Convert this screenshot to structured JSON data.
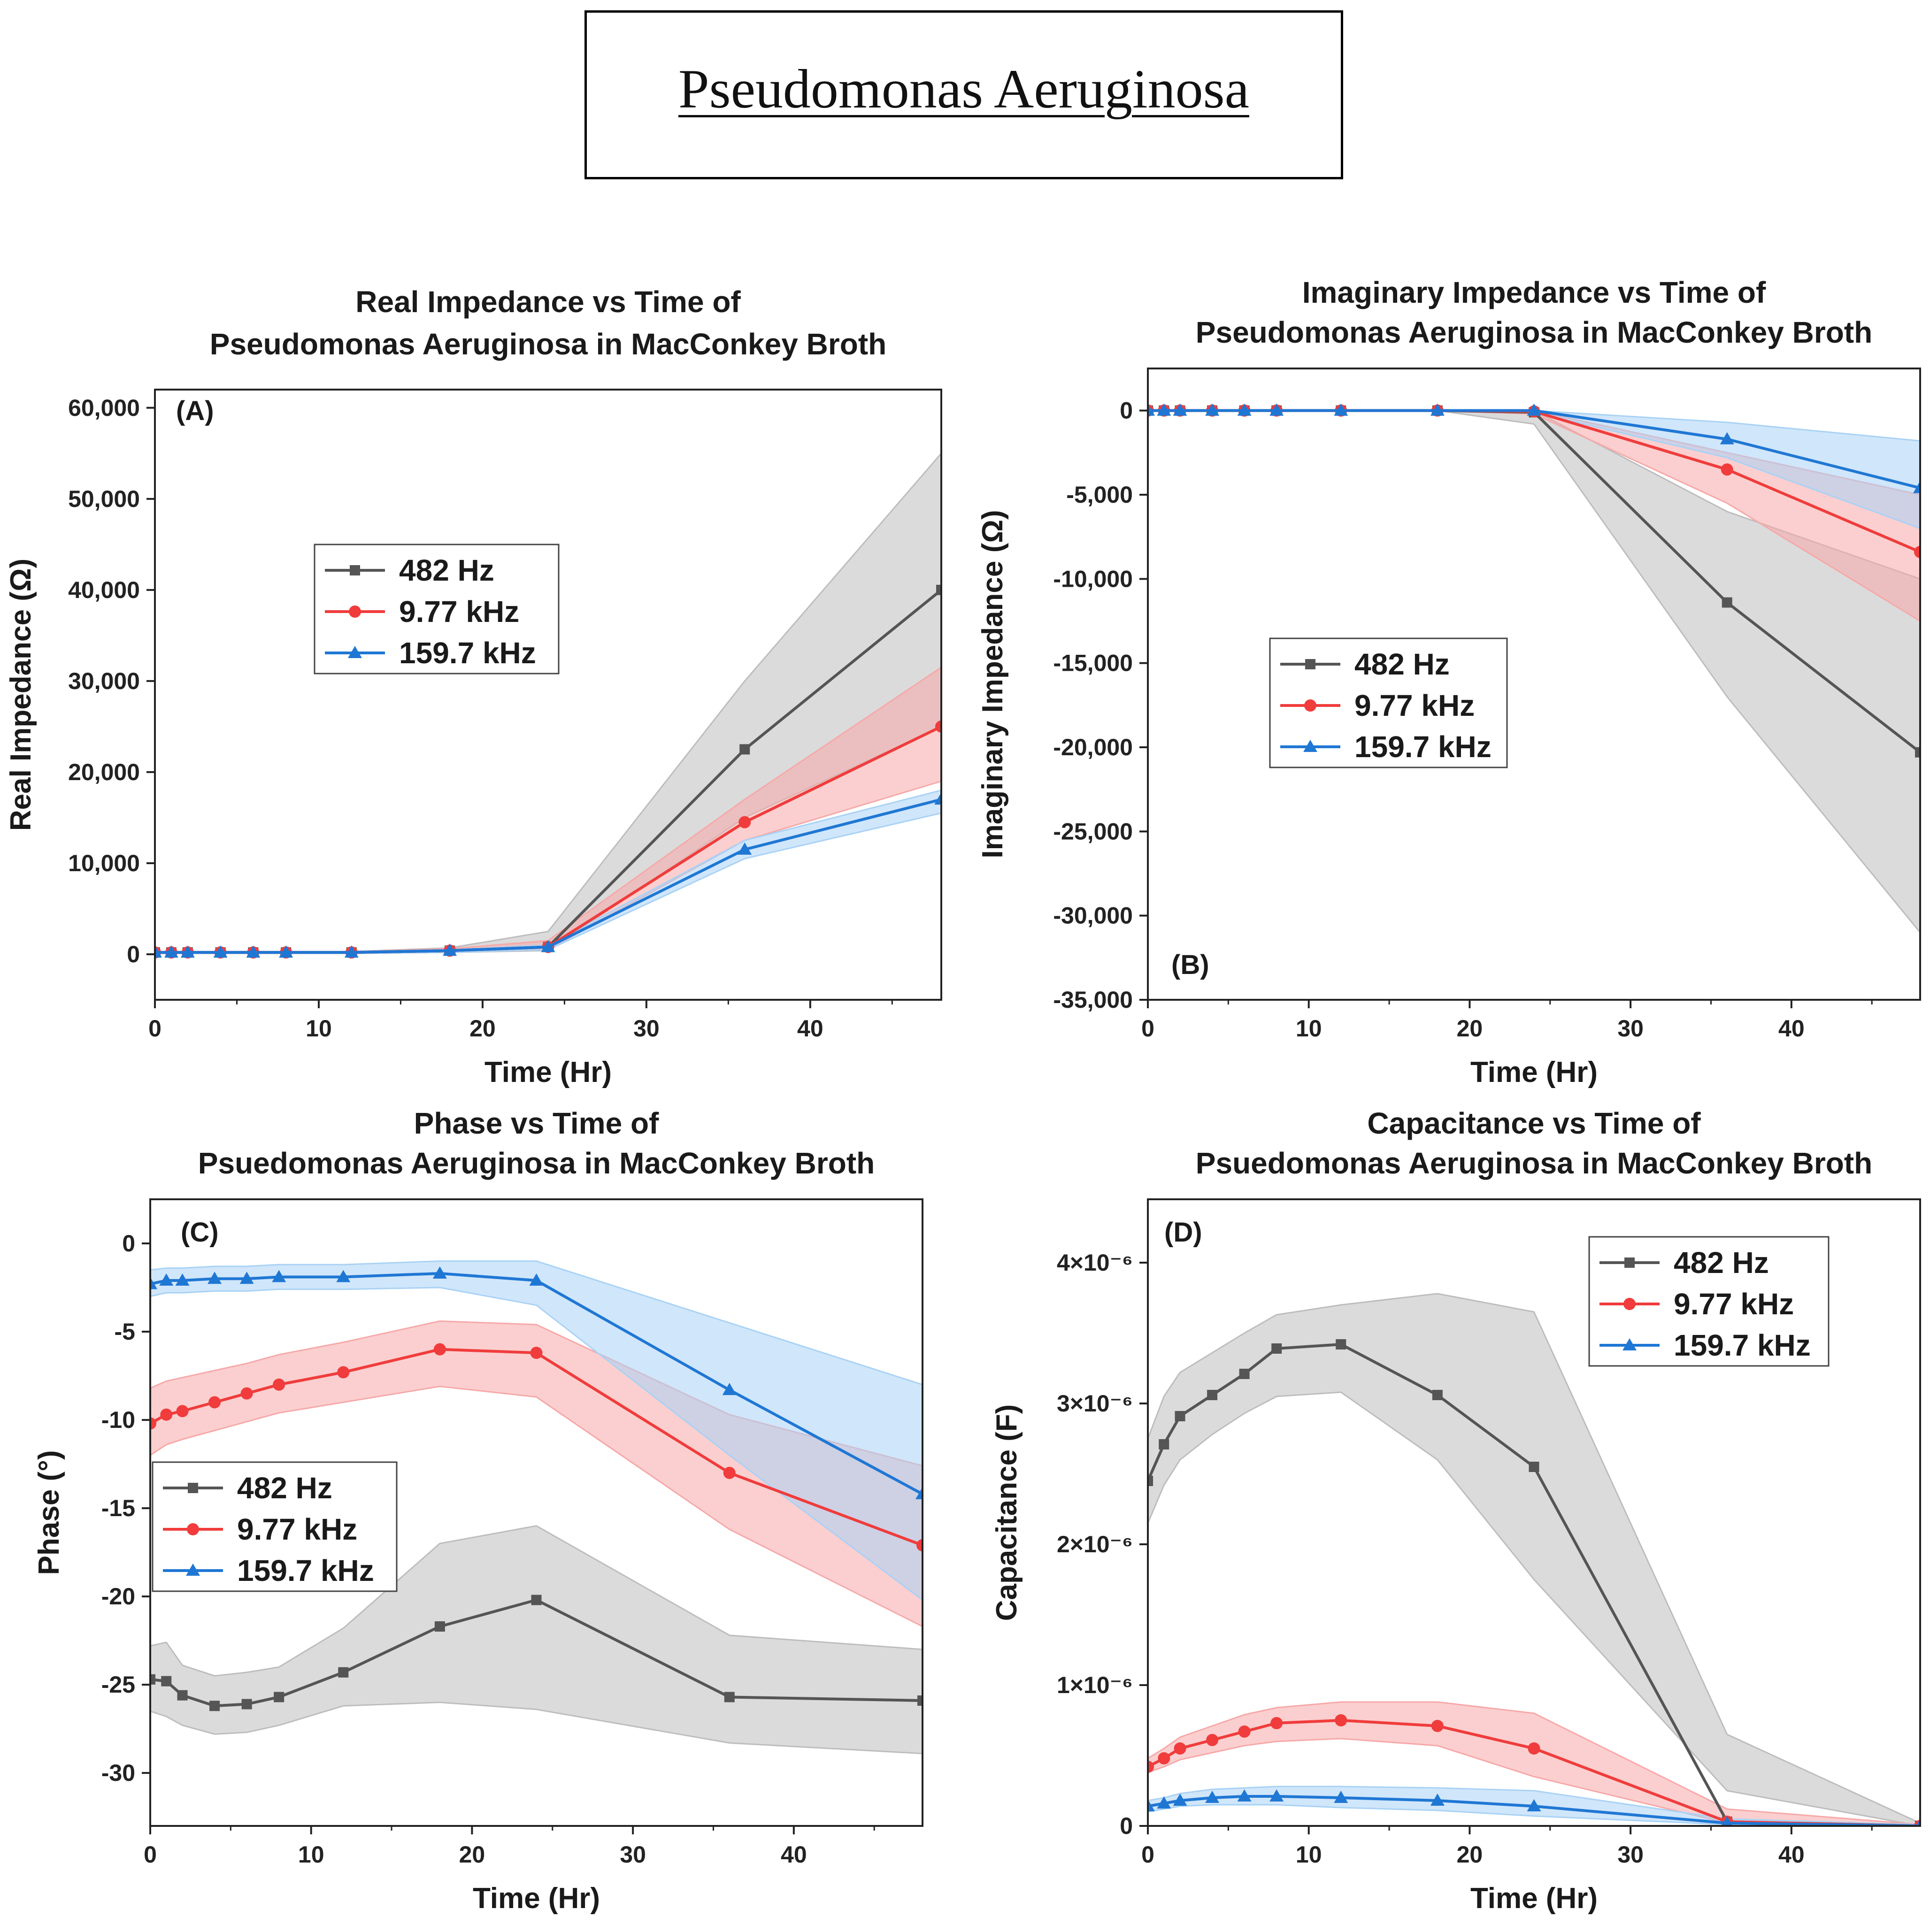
{
  "header": {
    "title": "Pseudomonas Aeruginosa"
  },
  "legend_labels": [
    "482 Hz",
    "9.77 kHz",
    "159.7 kHz"
  ],
  "colors": {
    "s482": "#555555",
    "s977": "#f03c3c",
    "s1597": "#1f77d4",
    "band482": "#bdbdbd",
    "band977": "#f7a8a8",
    "band1597": "#a9d2f5"
  },
  "chart_data": [
    {
      "id": "A",
      "type": "line",
      "panel_label": "(A)",
      "title_lines": [
        "Real Impedance vs Time of",
        "Pseudomonas Aeruginosa in MacConkey Broth"
      ],
      "xlabel": "Time (Hr)",
      "ylabel": "Real Impedance (Ω)",
      "xlim": [
        0,
        48
      ],
      "ylim": [
        -5000,
        62000
      ],
      "xticks": [
        0,
        10,
        20,
        30,
        40
      ],
      "xtick_labels": [
        "0",
        "10",
        "20",
        "30",
        "40"
      ],
      "yticks": [
        0,
        10000,
        20000,
        30000,
        40000,
        50000,
        60000
      ],
      "ytick_labels": [
        "0",
        "10,000",
        "20,000",
        "30,000",
        "40,000",
        "50,000",
        "60,000"
      ],
      "x": [
        0,
        1,
        2,
        4,
        6,
        8,
        12,
        18,
        24,
        36,
        48
      ],
      "series": [
        {
          "name": "482 Hz",
          "marker": "square",
          "values": [
            200,
            200,
            200,
            200,
            200,
            200,
            200,
            400,
            800,
            22500,
            40000
          ],
          "band_lo": [
            100,
            100,
            100,
            100,
            100,
            100,
            100,
            200,
            400,
            15000,
            25000
          ],
          "band_hi": [
            300,
            300,
            300,
            300,
            300,
            300,
            300,
            700,
            2500,
            30000,
            55000
          ]
        },
        {
          "name": "9.77 kHz",
          "marker": "circle",
          "values": [
            200,
            200,
            200,
            200,
            200,
            200,
            200,
            400,
            800,
            14500,
            25000
          ],
          "band_lo": [
            100,
            100,
            100,
            100,
            100,
            100,
            100,
            200,
            500,
            12500,
            19000
          ],
          "band_hi": [
            300,
            300,
            300,
            300,
            300,
            300,
            300,
            600,
            1500,
            17000,
            31500
          ]
        },
        {
          "name": "159.7 kHz",
          "marker": "triangle",
          "values": [
            200,
            200,
            200,
            200,
            200,
            200,
            200,
            400,
            800,
            11500,
            17000
          ],
          "band_lo": [
            100,
            100,
            100,
            100,
            100,
            100,
            100,
            200,
            500,
            10500,
            15500
          ],
          "band_hi": [
            300,
            300,
            300,
            300,
            300,
            300,
            300,
            500,
            1000,
            12500,
            18000
          ]
        }
      ],
      "legend_position": "upper-left"
    },
    {
      "id": "B",
      "type": "line",
      "panel_label": "(B)",
      "title_lines": [
        "Imaginary Impedance vs Time of",
        "Pseudomonas Aeruginosa in MacConkey Broth"
      ],
      "xlabel": "Time (Hr)",
      "ylabel": "Imaginary Impedance (Ω)",
      "xlim": [
        0,
        48
      ],
      "ylim": [
        -35000,
        2500
      ],
      "xticks": [
        0,
        10,
        20,
        30,
        40
      ],
      "xtick_labels": [
        "0",
        "10",
        "20",
        "30",
        "40"
      ],
      "yticks": [
        0,
        -5000,
        -10000,
        -15000,
        -20000,
        -25000,
        -30000,
        -35000
      ],
      "ytick_labels": [
        "0",
        "-5,000",
        "-10,000",
        "-15,000",
        "-20,000",
        "-25,000",
        "-30,000",
        "-35,000"
      ],
      "x": [
        0,
        1,
        2,
        4,
        6,
        8,
        12,
        18,
        24,
        36,
        48
      ],
      "series": [
        {
          "name": "482 Hz",
          "marker": "square",
          "values": [
            0,
            0,
            0,
            0,
            0,
            0,
            0,
            0,
            -100,
            -11400,
            -20300
          ],
          "band_lo": [
            0,
            0,
            0,
            0,
            0,
            0,
            0,
            0,
            -800,
            -17000,
            -31000
          ],
          "band_hi": [
            0,
            0,
            0,
            0,
            0,
            0,
            0,
            0,
            0,
            -6000,
            -10000
          ]
        },
        {
          "name": "9.77 kHz",
          "marker": "circle",
          "values": [
            0,
            0,
            0,
            0,
            0,
            0,
            0,
            0,
            -50,
            -3500,
            -8400
          ],
          "band_lo": [
            0,
            0,
            0,
            0,
            0,
            0,
            0,
            0,
            -200,
            -5500,
            -12500
          ],
          "band_hi": [
            0,
            0,
            0,
            0,
            0,
            0,
            0,
            0,
            0,
            -2500,
            -5000
          ]
        },
        {
          "name": "159.7 kHz",
          "marker": "triangle",
          "values": [
            0,
            0,
            0,
            0,
            0,
            0,
            0,
            0,
            0,
            -1700,
            -4600
          ],
          "band_lo": [
            0,
            0,
            0,
            0,
            0,
            0,
            0,
            0,
            -100,
            -2800,
            -7000
          ],
          "band_hi": [
            0,
            0,
            0,
            0,
            0,
            0,
            0,
            0,
            0,
            -700,
            -1800
          ]
        }
      ],
      "legend_position": "middle-left"
    },
    {
      "id": "C",
      "type": "line",
      "panel_label": "(C)",
      "title_lines": [
        "Phase vs Time of",
        "Psuedomonas Aeruginosa in MacConkey Broth"
      ],
      "xlabel": "Time (Hr)",
      "ylabel": "Phase (°)",
      "xlim": [
        0,
        48
      ],
      "ylim": [
        -33,
        2.5
      ],
      "xticks": [
        0,
        10,
        20,
        30,
        40
      ],
      "xtick_labels": [
        "0",
        "10",
        "20",
        "30",
        "40"
      ],
      "yticks": [
        0,
        -5,
        -10,
        -15,
        -20,
        -25,
        -30
      ],
      "ytick_labels": [
        "0",
        "-5",
        "-10",
        "-15",
        "-20",
        "-25",
        "-30"
      ],
      "x": [
        0,
        1,
        2,
        4,
        6,
        8,
        12,
        18,
        24,
        36,
        48
      ],
      "series": [
        {
          "name": "482 Hz",
          "marker": "square",
          "values": [
            -24.7,
            -24.8,
            -25.6,
            -26.2,
            -26.1,
            -25.7,
            -24.3,
            -21.7,
            -20.2,
            -25.7,
            -25.9
          ],
          "band_lo": [
            -26.5,
            -26.8,
            -27.3,
            -27.8,
            -27.7,
            -27.3,
            -26.2,
            -26.0,
            -26.4,
            -28.3,
            -28.9
          ],
          "band_hi": [
            -22.8,
            -22.6,
            -23.9,
            -24.5,
            -24.3,
            -24.0,
            -21.8,
            -17.0,
            -16.0,
            -22.2,
            -23.0
          ]
        },
        {
          "name": "9.77 kHz",
          "marker": "circle",
          "values": [
            -10.2,
            -9.7,
            -9.5,
            -9.0,
            -8.5,
            -8.0,
            -7.3,
            -6.0,
            -6.2,
            -13.0,
            -17.1
          ],
          "band_lo": [
            -12.0,
            -11.4,
            -11.1,
            -10.6,
            -10.1,
            -9.6,
            -9.0,
            -8.1,
            -8.7,
            -16.2,
            -21.7
          ],
          "band_hi": [
            -8.2,
            -7.8,
            -7.6,
            -7.2,
            -6.8,
            -6.3,
            -5.6,
            -4.4,
            -4.6,
            -9.7,
            -12.6
          ]
        },
        {
          "name": "159.7 kHz",
          "marker": "triangle",
          "values": [
            -2.3,
            -2.1,
            -2.1,
            -2.0,
            -2.0,
            -1.9,
            -1.9,
            -1.7,
            -2.1,
            -8.3,
            -14.2
          ],
          "band_lo": [
            -3.0,
            -2.8,
            -2.8,
            -2.7,
            -2.7,
            -2.6,
            -2.6,
            -2.5,
            -3.5,
            -12.0,
            -20.2
          ],
          "band_hi": [
            -1.5,
            -1.4,
            -1.4,
            -1.3,
            -1.3,
            -1.2,
            -1.2,
            -1.0,
            -1.0,
            -4.5,
            -8.0
          ]
        }
      ],
      "legend_position": "lower-left"
    },
    {
      "id": "D",
      "type": "line",
      "panel_label": "(D)",
      "title_lines": [
        "Capacitance vs Time of",
        "Psuedomonas Aeruginosa in MacConkey Broth"
      ],
      "xlabel": "Time (Hr)",
      "ylabel": "Capacitance (F)",
      "xlim": [
        0,
        48
      ],
      "ylim": [
        0,
        4.45
      ],
      "y_unit_note": "values ×10⁻⁶ F",
      "xticks": [
        0,
        10,
        20,
        30,
        40
      ],
      "xtick_labels": [
        "0",
        "10",
        "20",
        "30",
        "40"
      ],
      "yticks": [
        0,
        1,
        2,
        3,
        4
      ],
      "ytick_labels": [
        "0",
        "1×10⁻⁶",
        "2×10⁻⁶",
        "3×10⁻⁶",
        "4×10⁻⁶"
      ],
      "x": [
        0,
        1,
        2,
        4,
        6,
        8,
        12,
        18,
        24,
        36,
        48
      ],
      "series": [
        {
          "name": "482 Hz",
          "marker": "square",
          "values": [
            2.45,
            2.71,
            2.91,
            3.06,
            3.21,
            3.39,
            3.42,
            3.06,
            2.55,
            0.03,
            0.0
          ],
          "band_lo": [
            2.15,
            2.42,
            2.6,
            2.78,
            2.93,
            3.05,
            3.08,
            2.6,
            1.75,
            0.25,
            0.0
          ],
          "band_hi": [
            2.75,
            3.05,
            3.22,
            3.36,
            3.5,
            3.63,
            3.7,
            3.78,
            3.65,
            0.65,
            0.02
          ]
        },
        {
          "name": "9.77 kHz",
          "marker": "circle",
          "values": [
            0.42,
            0.48,
            0.55,
            0.61,
            0.67,
            0.73,
            0.75,
            0.71,
            0.55,
            0.03,
            0.0
          ],
          "band_lo": [
            0.38,
            0.42,
            0.47,
            0.52,
            0.57,
            0.6,
            0.62,
            0.57,
            0.35,
            0.02,
            0.0
          ],
          "band_hi": [
            0.48,
            0.55,
            0.63,
            0.71,
            0.79,
            0.84,
            0.88,
            0.88,
            0.8,
            0.12,
            0.01
          ]
        },
        {
          "name": "159.7 kHz",
          "marker": "triangle",
          "values": [
            0.14,
            0.16,
            0.18,
            0.2,
            0.21,
            0.21,
            0.2,
            0.18,
            0.14,
            0.02,
            0.0
          ],
          "band_lo": [
            0.1,
            0.12,
            0.14,
            0.15,
            0.15,
            0.15,
            0.13,
            0.11,
            0.07,
            0.01,
            0.0
          ],
          "band_hi": [
            0.18,
            0.2,
            0.23,
            0.26,
            0.27,
            0.28,
            0.28,
            0.27,
            0.25,
            0.05,
            0.01
          ]
        }
      ],
      "legend_position": "upper-right"
    }
  ]
}
